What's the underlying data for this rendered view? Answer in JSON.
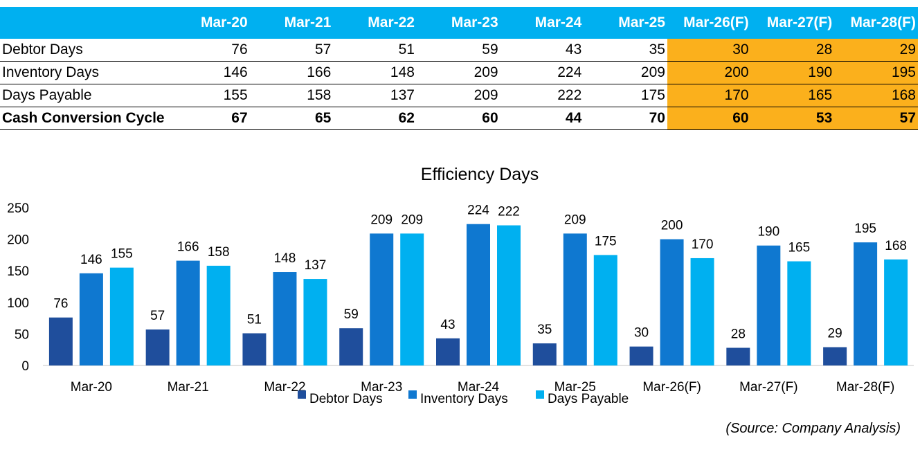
{
  "table": {
    "header_first": "",
    "columns": [
      "Mar-20",
      "Mar-21",
      "Mar-22",
      "Mar-23",
      "Mar-24",
      "Mar-25",
      "Mar-26(F)",
      "Mar-27(F)",
      "Mar-28(F)"
    ],
    "forecast_start_index": 6,
    "rows": [
      {
        "label": "Debtor Days",
        "values": [
          "76",
          "57",
          "51",
          "59",
          "43",
          "35",
          "30",
          "28",
          "29"
        ],
        "bold": false
      },
      {
        "label": "Inventory Days",
        "values": [
          "146",
          "166",
          "148",
          "209",
          "224",
          "209",
          "200",
          "190",
          "195"
        ],
        "bold": false
      },
      {
        "label": "Days Payable",
        "values": [
          "155",
          "158",
          "137",
          "209",
          "222",
          "175",
          "170",
          "165",
          "168"
        ],
        "bold": false
      },
      {
        "label": "Cash Conversion Cycle",
        "values": [
          "67",
          "65",
          "62",
          "60",
          "44",
          "70",
          "60",
          "53",
          "57"
        ],
        "bold": true
      }
    ],
    "header_color": "#00b0f0",
    "forecast_color": "#fbb01c"
  },
  "chart_data": {
    "type": "bar",
    "title": "Efficiency Days",
    "categories": [
      "Mar-20",
      "Mar-21",
      "Mar-22",
      "Mar-23",
      "Mar-24",
      "Mar-25",
      "Mar-26(F)",
      "Mar-27(F)",
      "Mar-28(F)"
    ],
    "series": [
      {
        "name": "Debtor Days",
        "values": [
          76,
          57,
          51,
          59,
          43,
          35,
          30,
          28,
          29
        ],
        "color": "#1f4e9c"
      },
      {
        "name": "Inventory Days",
        "values": [
          146,
          166,
          148,
          209,
          224,
          209,
          200,
          190,
          195
        ],
        "color": "#0f78d0"
      },
      {
        "name": "Days Payable",
        "values": [
          155,
          158,
          137,
          209,
          222,
          175,
          170,
          165,
          168
        ],
        "color": "#00b0f0"
      }
    ],
    "ylim": [
      0,
      250
    ],
    "yticks": [
      0,
      50,
      100,
      150,
      200,
      250
    ],
    "grid": false,
    "legend_position": "bottom",
    "data_labels": true
  },
  "source_note": "(Source: Company Analysis)"
}
